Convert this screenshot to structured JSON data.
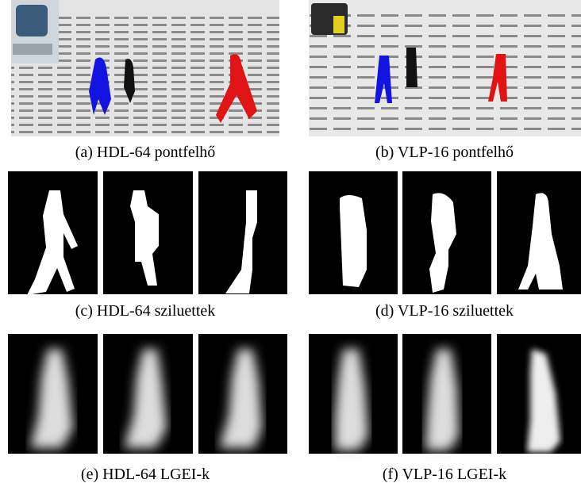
{
  "figure": {
    "panels": [
      {
        "caption": "(a) HDL-64 pontfelhő"
      },
      {
        "caption": "(b) VLP-16 pontfelhő"
      },
      {
        "caption": "(c) HDL-64 sziluettek"
      },
      {
        "caption": "(d) VLP-16 sziluettek"
      },
      {
        "caption": "(e) HDL-64 LGEI-k"
      },
      {
        "caption": "(f) VLP-16 LGEI-k"
      }
    ]
  }
}
